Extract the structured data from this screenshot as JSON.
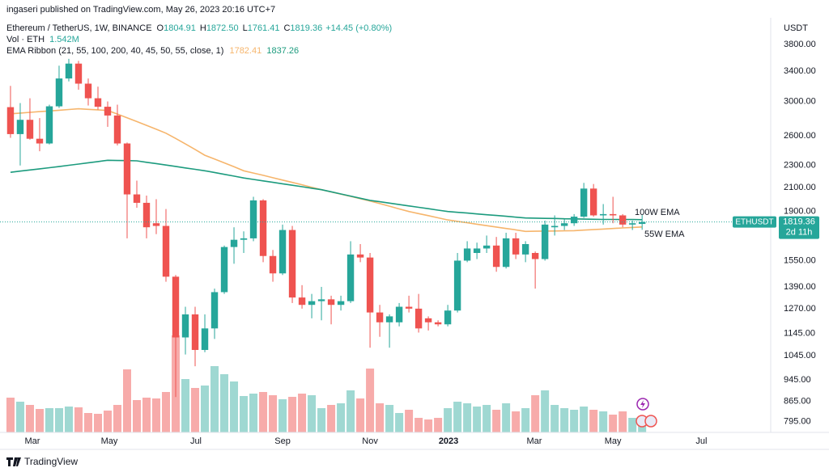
{
  "header": {
    "publisher": "ingaseri published on TradingView.com, May 26, 2023 20:16 UTC+7",
    "footer": "TradingView"
  },
  "chart_data": {
    "type": "candlestick",
    "title": "Ethereum / TetherUS, 1W, BINANCE",
    "ohlc_keys": [
      "O",
      "H",
      "L",
      "C"
    ],
    "ohlc_labels": [
      "1804.91",
      "1872.50",
      "1761.41",
      "1819.36"
    ],
    "change_label": "+14.45 (+0.80%)",
    "volume_title": "Vol · ETH",
    "volume_label": "1.542M",
    "indicator_title": "EMA Ribbon (21, 55, 100, 200, 40, 45, 50, 55, close, 1)",
    "y_axis_unit": "USDT",
    "symbol": "ETHUSDT",
    "countdown": "2d 11h",
    "up_color": "#26a69a",
    "down_color": "#ef5350",
    "volume_up_color": "#9fd8d2",
    "volume_down_color": "#f7abaa",
    "log_scale": true,
    "grid": false,
    "ylim": [
      760,
      4570
    ],
    "yticks": [
      {
        "value": 3800,
        "label": "3800.00"
      },
      {
        "value": 3400,
        "label": "3400.00"
      },
      {
        "value": 3000,
        "label": "3000.00"
      },
      {
        "value": 2600,
        "label": "2600.00"
      },
      {
        "value": 2300,
        "label": "2300.00"
      },
      {
        "value": 2100,
        "label": "2100.00"
      },
      {
        "value": 1900,
        "label": "1900.00"
      },
      {
        "value": 1550,
        "label": "1550.00"
      },
      {
        "value": 1390,
        "label": "1390.00"
      },
      {
        "value": 1270,
        "label": "1270.00"
      },
      {
        "value": 1145,
        "label": "1145.00"
      },
      {
        "value": 1045,
        "label": "1045.00"
      },
      {
        "value": 945,
        "label": "945.00"
      },
      {
        "value": 865,
        "label": "865.00"
      },
      {
        "value": 795,
        "label": "795.00"
      }
    ],
    "xlim": [
      -1.08,
      77.9
    ],
    "xticks": [
      {
        "value": 2.25,
        "label": "Mar"
      },
      {
        "value": 10.17,
        "label": "May"
      },
      {
        "value": 19.08,
        "label": "Jul"
      },
      {
        "value": 28.0,
        "label": "Sep"
      },
      {
        "value": 37.0,
        "label": "Nov"
      },
      {
        "value": 45.08,
        "label": "2023"
      },
      {
        "value": 53.9,
        "label": "Mar"
      },
      {
        "value": 62.0,
        "label": "May"
      },
      {
        "value": 71.1,
        "label": "Jul"
      }
    ],
    "vlim": [
      0,
      45
    ],
    "open": [
      2930,
      2620,
      2780,
      2570,
      2520,
      2940,
      3300,
      3510,
      3230,
      3040,
      2935,
      2830,
      2520,
      2040,
      1970,
      1810,
      1790,
      1450,
      1127,
      1240,
      1070,
      1170,
      1360,
      1640,
      1690,
      1700,
      1990,
      1580,
      1470,
      1760,
      1330,
      1290,
      1310,
      1320,
      1290,
      1310,
      1590,
      1570,
      1250,
      1200,
      1200,
      1280,
      1270,
      1220,
      1200,
      1190,
      1260,
      1550,
      1600,
      1630,
      1650,
      1510,
      1700,
      1590,
      1600,
      1560,
      1780,
      1790,
      1810,
      1860,
      2090,
      1870,
      1880,
      1870,
      1800,
      1804.91
    ],
    "high": [
      3200,
      2980,
      3040,
      2800,
      2960,
      3480,
      3580,
      3550,
      3300,
      3190,
      3000,
      2960,
      2530,
      2160,
      2030,
      2000,
      1920,
      1460,
      1280,
      1280,
      1240,
      1380,
      1650,
      1780,
      1750,
      2020,
      2000,
      1620,
      1800,
      1790,
      1400,
      1350,
      1390,
      1340,
      1340,
      1680,
      1660,
      1600,
      1290,
      1240,
      1300,
      1340,
      1350,
      1230,
      1210,
      1290,
      1600,
      1680,
      1670,
      1720,
      1710,
      1740,
      1740,
      1680,
      1610,
      1830,
      1870,
      1840,
      1880,
      2140,
      2130,
      1960,
      2020,
      1880,
      1830,
      1872.5
    ],
    "low": [
      2580,
      2300,
      2560,
      2440,
      2510,
      2920,
      3260,
      3150,
      2950,
      2900,
      2700,
      2500,
      1700,
      1930,
      1700,
      1730,
      1420,
      880,
      1050,
      1000,
      1060,
      1120,
      1350,
      1530,
      1600,
      1680,
      1540,
      1420,
      1460,
      1300,
      1270,
      1220,
      1210,
      1190,
      1260,
      1300,
      1540,
      1080,
      1130,
      1080,
      1180,
      1250,
      1150,
      1160,
      1180,
      1180,
      1250,
      1540,
      1560,
      1600,
      1480,
      1500,
      1560,
      1540,
      1380,
      1550,
      1720,
      1760,
      1790,
      1850,
      1860,
      1800,
      1810,
      1780,
      1760,
      1761.41
    ],
    "close": [
      2620,
      2780,
      2570,
      2520,
      2940,
      3300,
      3510,
      3230,
      3040,
      2935,
      2830,
      2520,
      2040,
      1970,
      1780,
      1790,
      1450,
      1127,
      1240,
      1070,
      1170,
      1360,
      1640,
      1690,
      1700,
      1990,
      1580,
      1470,
      1760,
      1330,
      1290,
      1310,
      1320,
      1290,
      1310,
      1590,
      1570,
      1250,
      1200,
      1230,
      1280,
      1270,
      1170,
      1200,
      1190,
      1260,
      1550,
      1630,
      1630,
      1650,
      1510,
      1700,
      1590,
      1660,
      1560,
      1800,
      1790,
      1810,
      1860,
      2090,
      1870,
      1880,
      1870,
      1800,
      1810,
      1819.36
    ],
    "volume": [
      4.3,
      3.8,
      3.4,
      2.9,
      3.0,
      3.0,
      3.2,
      3.1,
      2.4,
      2.3,
      2.7,
      3.4,
      7.8,
      4.0,
      4.3,
      4.2,
      5.0,
      12.0,
      6.6,
      5.5,
      5.8,
      8.2,
      7.2,
      6.3,
      4.5,
      4.8,
      5.0,
      4.6,
      4.1,
      4.4,
      4.8,
      4.6,
      3.0,
      3.4,
      3.6,
      5.2,
      4.2,
      7.9,
      3.6,
      3.4,
      2.4,
      2.8,
      1.8,
      1.6,
      1.8,
      3.0,
      3.8,
      3.6,
      3.2,
      3.4,
      2.8,
      3.6,
      2.6,
      3.0,
      4.6,
      5.2,
      3.4,
      3.0,
      2.8,
      3.2,
      2.8,
      2.6,
      2.2,
      2.6,
      1.8,
      1.542
    ],
    "series": [
      {
        "name": "55W EMA",
        "color": "#f6b56c",
        "values": [
          2850,
          2859,
          2867,
          2876,
          2884,
          2893,
          2901,
          2910,
          2903,
          2897,
          2890,
          2847,
          2803,
          2760,
          2717,
          2673,
          2630,
          2573,
          2515,
          2458,
          2400,
          2363,
          2325,
          2288,
          2250,
          2229,
          2208,
          2186,
          2165,
          2144,
          2123,
          2101,
          2080,
          2061,
          2042,
          2023,
          2004,
          1985,
          1964,
          1943,
          1921,
          1900,
          1884,
          1868,
          1851,
          1835,
          1824,
          1814,
          1803,
          1792,
          1782,
          1771,
          1761,
          1750,
          1751,
          1752,
          1753,
          1754,
          1755,
          1759,
          1763,
          1767,
          1771,
          1775,
          1779,
          1782.41
        ]
      },
      {
        "name": "100W EMA",
        "color": "#1c9b7e",
        "values": [
          2236,
          2247,
          2258,
          2268,
          2279,
          2290,
          2302,
          2314,
          2326,
          2338,
          2350,
          2348,
          2347,
          2345,
          2331,
          2318,
          2304,
          2291,
          2277,
          2264,
          2250,
          2234,
          2217,
          2201,
          2184,
          2171,
          2158,
          2145,
          2132,
          2119,
          2106,
          2093,
          2080,
          2062,
          2044,
          2026,
          2008,
          1990,
          1979,
          1968,
          1956,
          1945,
          1934,
          1923,
          1911,
          1900,
          1894,
          1888,
          1881,
          1875,
          1869,
          1863,
          1856,
          1850,
          1849,
          1847,
          1846,
          1844,
          1843,
          1841,
          1840,
          1839,
          1839,
          1838,
          1838,
          1837.26
        ]
      }
    ]
  }
}
